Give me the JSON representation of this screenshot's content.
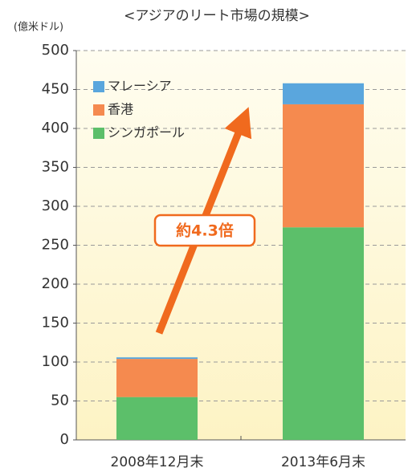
{
  "chart_data": {
    "type": "bar",
    "stacked": true,
    "title": "<アジアのリート市場の規模>",
    "y_label": "(億米ドル)",
    "annotation": "約4.3倍",
    "categories": [
      "2008年12月末",
      "2013年6月末"
    ],
    "series": [
      {
        "name": "シンガポール",
        "color": "#5cbf6a",
        "values": [
          55,
          273
        ]
      },
      {
        "name": "香港",
        "color": "#f58a4f",
        "values": [
          49,
          158
        ]
      },
      {
        "name": "マレーシア",
        "color": "#5aa6dd",
        "values": [
          2,
          27
        ]
      }
    ],
    "ylim": [
      0,
      500
    ],
    "yticks": [
      0,
      50,
      100,
      150,
      200,
      250,
      300,
      350,
      400,
      450,
      500
    ],
    "grid": true,
    "legend": "top-left"
  }
}
